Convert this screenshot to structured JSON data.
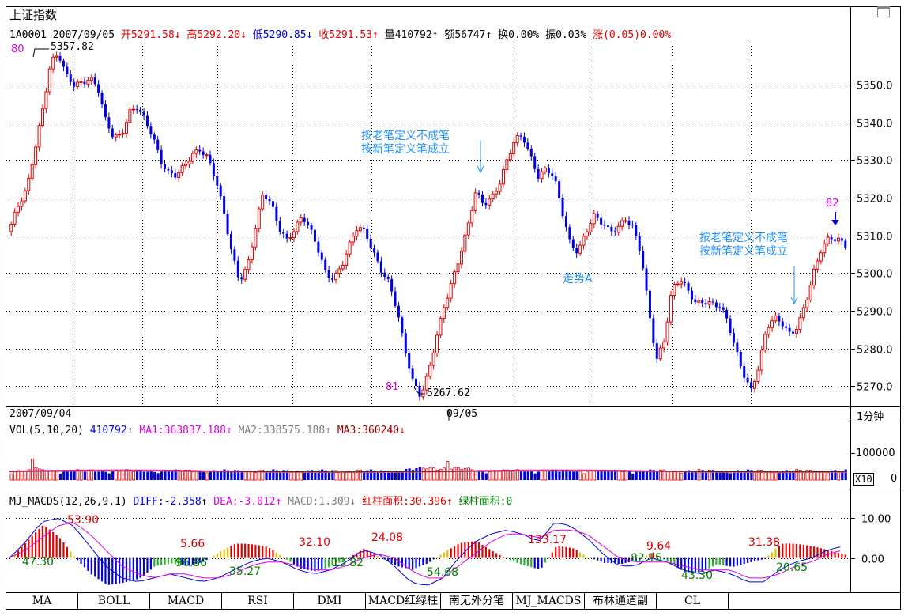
{
  "window": {
    "title": "上证指数",
    "icon": "window-restore-icon"
  },
  "header": {
    "code_date": "1A0001 2007/09/05",
    "open": "开5291.58",
    "high": "高5292.20",
    "low": "低5290.85",
    "close": "收5291.53",
    "volume": "量410792",
    "amount": "额56747",
    "turnover": "换0.00%",
    "amplitude": "振0.03%",
    "change": "涨(0.05)0.00%"
  },
  "price_panel": {
    "y_ticks": [
      "5350.0",
      "5340.0",
      "5330.0",
      "5320.0",
      "5310.0",
      "5300.0",
      "5290.0",
      "5280.0",
      "5270.0"
    ],
    "y_values": [
      5350,
      5340,
      5330,
      5320,
      5310,
      5300,
      5290,
      5280,
      5270
    ],
    "ylim": [
      5265,
      5362
    ],
    "high_label": "5357.82",
    "low_label": "5267.62",
    "marks": [
      "80",
      "81",
      "82"
    ],
    "ann1_line1": "按老笔定义不成笔",
    "ann1_line2": "按新笔定义笔成立",
    "ann2_line1": "按老笔定义不成笔",
    "ann2_line2": "按新笔定义笔成立",
    "trend_label": "走势A"
  },
  "date_bar": {
    "left": "2007/09/04",
    "mid": "09/05",
    "period": "1分钟"
  },
  "vol_panel": {
    "title": "VOL(5,10,20)",
    "value": "410792",
    "ma1": "MA1:363837.188",
    "ma2": "MA2:338575.188",
    "ma3": "MA3:360240",
    "y_tick": "100000",
    "zero": "0",
    "unit": "X10"
  },
  "macd_panel": {
    "title": "MJ_MACDS(12,26,9,1)",
    "diff": "DIFF:-2.358",
    "dea": "DEA:-3.012",
    "macd": "MACD:1.309",
    "red_area": "红柱面积:30.396",
    "green_area": "绿柱面积:0",
    "y_ticks": [
      "10.00",
      "0.00"
    ],
    "area_labels_red": [
      "53.90",
      "5.66",
      "32.10",
      "24.08",
      "133.17",
      "9.64",
      "31.38"
    ],
    "area_labels_green": [
      "47.30",
      "96.86",
      "35.27",
      "13.82",
      "54.68",
      "82.15",
      "43.30",
      "20.65"
    ]
  },
  "tabs": [
    "MA",
    "BOLL",
    "MACD",
    "RSI",
    "DMI",
    "MACD红绿柱",
    "南无外分笔",
    "MJ_MACDS",
    "布林通道副",
    "CL"
  ],
  "colors": {
    "up": "#e00000",
    "down": "#0000e0",
    "ma1": "#e000e0",
    "ma2": "#808080",
    "ma3": "#a00000",
    "annotation": "#1e90ff",
    "bar_yellow": "#e0c000",
    "bar_green": "#30b030"
  },
  "chart_data": [
    {
      "type": "candlestick",
      "title": "上证指数",
      "ylim": [
        5265,
        5362
      ],
      "x": [
        "2007/09/04",
        "09/05"
      ],
      "close_path": [
        5313,
        5318,
        5322,
        5333,
        5344,
        5356,
        5357.82,
        5352,
        5350,
        5351,
        5352,
        5349,
        5340,
        5336,
        5337,
        5343,
        5344,
        5340,
        5336,
        5330,
        5327,
        5326,
        5328,
        5331,
        5333,
        5331,
        5325,
        5316,
        5305,
        5298,
        5302,
        5312,
        5321,
        5318,
        5312,
        5309,
        5312,
        5315,
        5311,
        5306,
        5300,
        5299,
        5302,
        5307,
        5312,
        5311,
        5306,
        5301,
        5297,
        5290,
        5280,
        5272,
        5267.62,
        5273,
        5282,
        5291,
        5298,
        5305,
        5312,
        5321,
        5318,
        5320,
        5324,
        5330,
        5335,
        5336,
        5331,
        5326,
        5328,
        5325,
        5316,
        5308,
        5306,
        5311,
        5315,
        5313,
        5311,
        5312,
        5315,
        5312,
        5305,
        5290,
        5277,
        5283,
        5296,
        5298,
        5295,
        5292,
        5293,
        5292,
        5291,
        5287,
        5280,
        5274,
        5269,
        5275,
        5285,
        5288,
        5287,
        5284,
        5286,
        5292,
        5300,
        5307,
        5310,
        5309,
        5307
      ]
    },
    {
      "type": "bar",
      "title": "VOL(5,10,20)",
      "series": [
        {
          "name": "MA1",
          "value": 363837.188
        },
        {
          "name": "MA2",
          "value": 338575.188
        },
        {
          "name": "MA3",
          "value": 360240
        }
      ],
      "last_volume": 410792
    },
    {
      "type": "line",
      "title": "MJ_MACDS(12,26,9,1)",
      "ylim": [
        -8,
        13
      ],
      "diff_path": [
        0,
        4,
        9,
        10,
        8,
        3,
        -2,
        -5,
        -6,
        -5,
        -4,
        -5,
        -6,
        -5,
        -3,
        -1,
        0,
        -1,
        -3,
        -4,
        -3,
        -1,
        2,
        1,
        -2,
        -6,
        -7,
        -5,
        0,
        4,
        6,
        7,
        6,
        4,
        9,
        8,
        5,
        1,
        -2,
        -2,
        0,
        -1,
        -3,
        -4,
        -3,
        -4,
        -6,
        -6,
        -3,
        -1,
        0,
        2,
        3
      ],
      "dea_path": [
        0,
        2,
        5,
        8,
        9,
        6,
        2,
        -2,
        -4,
        -5,
        -4,
        -4,
        -5,
        -5,
        -4,
        -2,
        -1,
        -1,
        -2,
        -3,
        -3,
        -2,
        0,
        1,
        0,
        -3,
        -5,
        -5,
        -2,
        1,
        4,
        6,
        6,
        5,
        7,
        7,
        6,
        3,
        0,
        -1,
        -1,
        -1,
        -2,
        -3,
        -3,
        -3,
        -5,
        -5,
        -4,
        -2,
        -1,
        1,
        2
      ],
      "diff": -2.358,
      "dea": -3.012,
      "macd": 1.309
    }
  ]
}
